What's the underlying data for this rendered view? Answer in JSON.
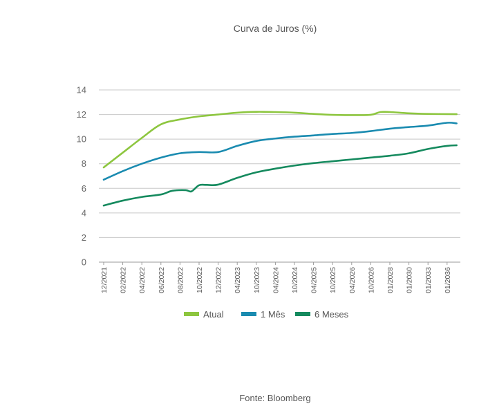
{
  "chart_data": {
    "type": "line",
    "title": "Curva de Juros (%)",
    "source": "Fonte: Bloomberg",
    "ylim": [
      0,
      14
    ],
    "yticks": [
      0,
      2,
      4,
      6,
      8,
      10,
      12,
      14
    ],
    "grid": true,
    "legend_position": "bottom",
    "tick_labels": [
      "12/2021",
      "02/2022",
      "04/2022",
      "06/2022",
      "08/2022",
      "10/2022",
      "12/2022",
      "04/2023",
      "10/2023",
      "04/2024",
      "10/2024",
      "04/2025",
      "10/2025",
      "04/2026",
      "10/2026",
      "01/2028",
      "01/2030",
      "01/2033",
      "01/2036"
    ],
    "series": [
      {
        "name": "Atual",
        "color": "#8dc63f",
        "x": [
          0,
          1,
          2,
          3,
          4,
          5,
          6,
          7,
          8,
          9,
          10,
          11,
          12,
          13,
          14,
          14.5,
          15,
          16,
          17,
          18.5
        ],
        "values": [
          7.7,
          8.9,
          10.1,
          11.2,
          11.6,
          11.85,
          12.0,
          12.15,
          12.22,
          12.2,
          12.15,
          12.05,
          11.97,
          11.95,
          11.98,
          12.2,
          12.2,
          12.1,
          12.05,
          12.03
        ]
      },
      {
        "name": "1 Mês",
        "color": "#1a8bb0",
        "x": [
          0,
          1,
          2,
          3,
          4,
          5,
          6,
          7,
          8,
          9,
          10,
          11,
          12,
          13,
          14,
          15,
          16,
          17,
          18,
          18.5
        ],
        "values": [
          6.7,
          7.4,
          8.0,
          8.5,
          8.85,
          8.95,
          8.95,
          9.45,
          9.85,
          10.05,
          10.2,
          10.3,
          10.42,
          10.5,
          10.65,
          10.85,
          10.98,
          11.1,
          11.33,
          11.28
        ]
      },
      {
        "name": "6 Meses",
        "color": "#158a5e",
        "x": [
          0,
          1,
          2,
          3,
          3.6,
          4.3,
          4.6,
          5,
          5.4,
          6,
          7,
          8,
          9,
          10,
          11,
          12,
          13,
          14,
          15,
          16,
          17,
          18,
          18.5
        ],
        "values": [
          4.6,
          5.0,
          5.3,
          5.5,
          5.8,
          5.85,
          5.75,
          6.25,
          6.28,
          6.3,
          6.85,
          7.3,
          7.6,
          7.85,
          8.05,
          8.2,
          8.35,
          8.5,
          8.65,
          8.85,
          9.2,
          9.45,
          9.5
        ]
      }
    ]
  }
}
